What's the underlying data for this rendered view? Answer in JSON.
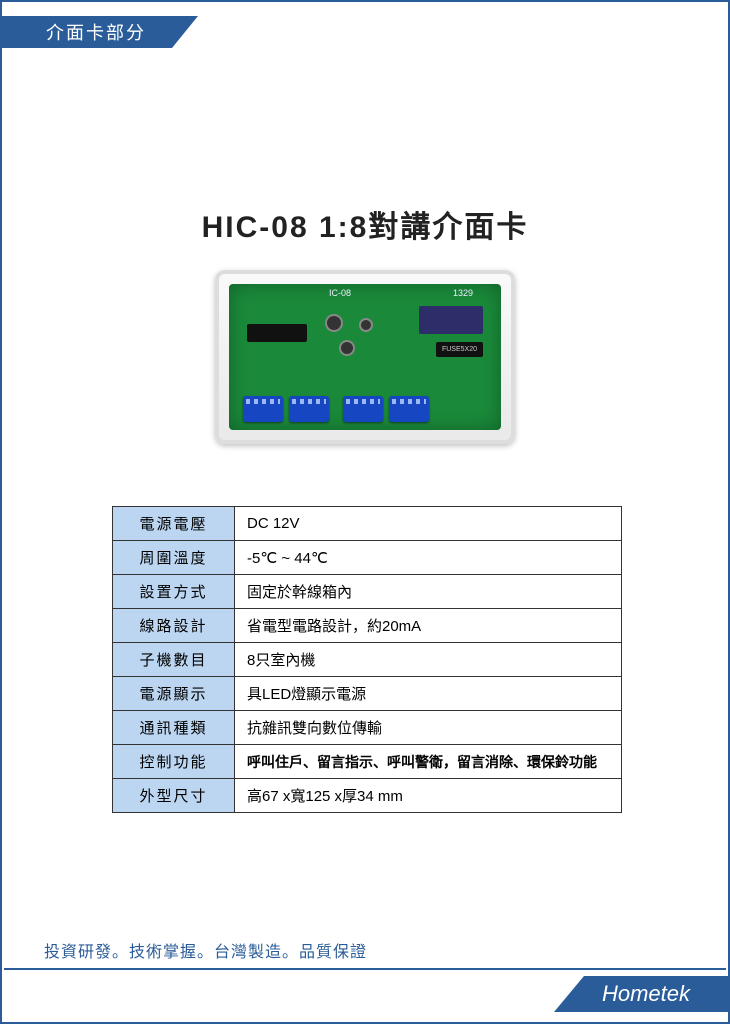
{
  "header": {
    "section_label": "介面卡部分"
  },
  "title": "HIC-08 1:8對講介面卡",
  "pcb": {
    "silk1": "IC-08",
    "silk2": "1329",
    "fuse_label": "FUSE5X20"
  },
  "spec_table": {
    "rows": [
      {
        "label": "電源電壓",
        "value": "DC 12V",
        "bold": false
      },
      {
        "label": "周圍溫度",
        "value": "-5℃ ~ 44℃",
        "bold": false
      },
      {
        "label": "設置方式",
        "value": "固定於幹線箱內",
        "bold": false
      },
      {
        "label": "線路設計",
        "value": "省電型電路設計，約20mA",
        "bold": false
      },
      {
        "label": "子機數目",
        "value": "8只室內機",
        "bold": false
      },
      {
        "label": "電源顯示",
        "value": "具LED燈顯示電源",
        "bold": false
      },
      {
        "label": "通訊種類",
        "value": "抗雜訊雙向數位傳輸",
        "bold": false
      },
      {
        "label": "控制功能",
        "value": "呼叫住戶、留言指示、呼叫警衛，留言消除、環保鈴功能",
        "bold": true
      },
      {
        "label": "外型尺寸",
        "value": "高67 x寬125 x厚34 mm",
        "bold": false
      }
    ]
  },
  "footer": {
    "tagline": "投資研發。技術掌握。台灣製造。品質保證",
    "brand": "Hometek"
  },
  "colors": {
    "brand_blue": "#2a5c9a",
    "table_header_bg": "#bcd6f2",
    "pcb_green": "#1a8a3a",
    "terminal_blue": "#1646c2"
  }
}
